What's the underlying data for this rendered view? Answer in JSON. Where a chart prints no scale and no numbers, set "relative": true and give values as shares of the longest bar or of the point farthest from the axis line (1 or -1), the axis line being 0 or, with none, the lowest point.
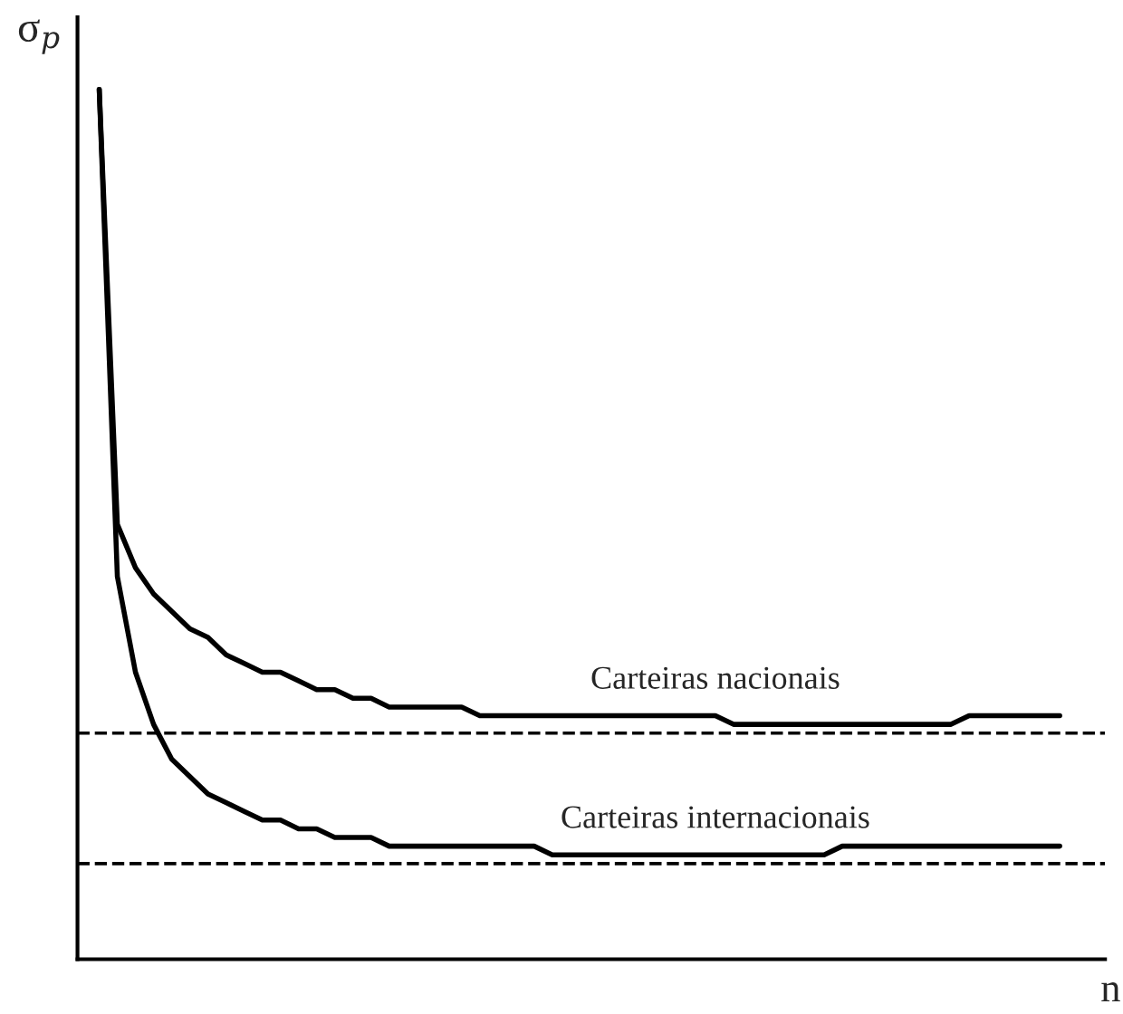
{
  "chart_data": {
    "type": "line",
    "relative": true,
    "xlabel": "n",
    "ylabel": "σ$_{p}$",
    "line_style": "solid",
    "categories": [
      null,
      null,
      null,
      null,
      null,
      null,
      null,
      null,
      null,
      null,
      null,
      null,
      null,
      null,
      null,
      null,
      null,
      null,
      null,
      null,
      null,
      null,
      null,
      null,
      null,
      null,
      null,
      null,
      null,
      null,
      null,
      null,
      null,
      null,
      null,
      null,
      null,
      null,
      null,
      null,
      null,
      null,
      null,
      null,
      null,
      null,
      null,
      null,
      null,
      null,
      null,
      null,
      null,
      null
    ],
    "series": [
      {
        "color": "#000000",
        "values": [
          1.0,
          0.5,
          0.45,
          0.42,
          0.4,
          0.38,
          0.37,
          0.35,
          0.34,
          0.33,
          0.33,
          0.32,
          0.31,
          0.31,
          0.3,
          0.3,
          0.29,
          0.29,
          0.29,
          0.29,
          0.29,
          0.28,
          0.28,
          0.28,
          0.28,
          0.28,
          0.28,
          0.28,
          0.28,
          0.28,
          0.28,
          0.28,
          0.28,
          0.28,
          0.28,
          0.27,
          0.27,
          0.27,
          0.27,
          0.27,
          0.27,
          0.27,
          0.27,
          0.27,
          0.27,
          0.27,
          0.27,
          0.27,
          0.28,
          0.28,
          0.28,
          0.28,
          0.28,
          0.28
        ]
      },
      {
        "color": "#000000",
        "values": [
          1.0,
          0.44,
          0.33,
          0.27,
          0.23,
          0.21,
          0.19,
          0.18,
          0.17,
          0.16,
          0.16,
          0.15,
          0.15,
          0.14,
          0.14,
          0.14,
          0.13,
          0.13,
          0.13,
          0.13,
          0.13,
          0.13,
          0.13,
          0.13,
          0.13,
          0.12,
          0.12,
          0.12,
          0.12,
          0.12,
          0.12,
          0.12,
          0.12,
          0.12,
          0.12,
          0.12,
          0.12,
          0.12,
          0.12,
          0.12,
          0.12,
          0.13,
          0.13,
          0.13,
          0.13,
          0.13,
          0.13,
          0.13,
          0.13,
          0.13,
          0.13,
          0.13,
          0.13,
          0.13
        ]
      }
    ],
    "ref_lines": [
      {
        "axis": "y",
        "value": 0.26,
        "color": "#000000",
        "line_style": "dashed"
      },
      {
        "axis": "y",
        "value": 0.11,
        "color": "#000000",
        "line_style": "dashed"
      }
    ],
    "annotations": [
      "Carteiras nacionais",
      "Carteiras internacionais"
    ]
  }
}
